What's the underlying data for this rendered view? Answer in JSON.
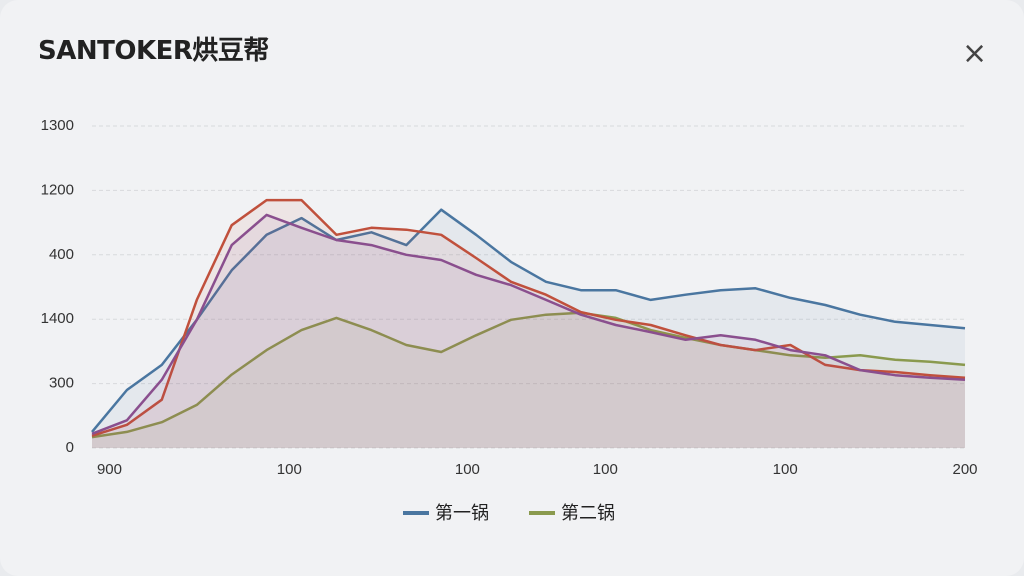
{
  "logo": "SANTOKER烘豆帮",
  "close": "×",
  "chart_data": {
    "type": "line",
    "x": [
      0,
      4,
      8,
      12,
      16,
      20,
      24,
      28,
      32,
      36,
      40,
      44,
      48,
      52,
      56,
      60,
      64,
      68,
      72,
      76,
      80,
      84,
      88,
      92,
      96,
      100
    ],
    "xlim": [
      0,
      100
    ],
    "xticks": [
      {
        "value": 2,
        "label": "900"
      },
      {
        "value": 22.6,
        "label": "100"
      },
      {
        "value": 43,
        "label": "100"
      },
      {
        "value": 58.8,
        "label": "100"
      },
      {
        "value": 79.4,
        "label": "100"
      },
      {
        "value": 100,
        "label": "200"
      }
    ],
    "ylim": [
      0,
      5
    ],
    "yticks": [
      0,
      {
        "value": 1,
        "label": "300"
      },
      {
        "value": 2,
        "label": "1400"
      },
      {
        "value": 3,
        "label": "400"
      },
      {
        "value": 4,
        "label": "1200"
      },
      {
        "value": 5,
        "label": "1300"
      }
    ],
    "grid": true,
    "series": [
      {
        "name": "第一锅",
        "color": "#4a76a0",
        "values": [
          0.25,
          0.9,
          1.29,
          1.99,
          2.76,
          3.31,
          3.57,
          3.23,
          3.35,
          3.15,
          3.7,
          3.31,
          2.89,
          2.58,
          2.45,
          2.45,
          2.3,
          2.38,
          2.45,
          2.48,
          2.33,
          2.22,
          2.07,
          1.96,
          1.91,
          1.86
        ]
      },
      {
        "name": "第二锅",
        "color": "#8a9a4e",
        "values": [
          0.17,
          0.25,
          0.4,
          0.67,
          1.14,
          1.52,
          1.83,
          2.02,
          1.83,
          1.6,
          1.49,
          1.75,
          1.99,
          2.07,
          2.1,
          2.02,
          1.83,
          1.71,
          1.6,
          1.52,
          1.44,
          1.4,
          1.44,
          1.37,
          1.34,
          1.29
        ]
      },
      {
        "color": "#c0503c",
        "values": [
          0.19,
          0.36,
          0.75,
          2.3,
          3.46,
          3.85,
          3.85,
          3.31,
          3.42,
          3.39,
          3.31,
          2.95,
          2.58,
          2.38,
          2.11,
          1.99,
          1.91,
          1.75,
          1.6,
          1.52,
          1.6,
          1.29,
          1.21,
          1.18,
          1.13,
          1.09
        ]
      },
      {
        "color": "#8a4f8e",
        "values": [
          0.22,
          0.43,
          1.06,
          1.99,
          3.15,
          3.62,
          3.42,
          3.23,
          3.15,
          3.0,
          2.92,
          2.69,
          2.53,
          2.3,
          2.07,
          1.91,
          1.8,
          1.68,
          1.75,
          1.68,
          1.52,
          1.44,
          1.21,
          1.13,
          1.09,
          1.06
        ]
      }
    ]
  }
}
